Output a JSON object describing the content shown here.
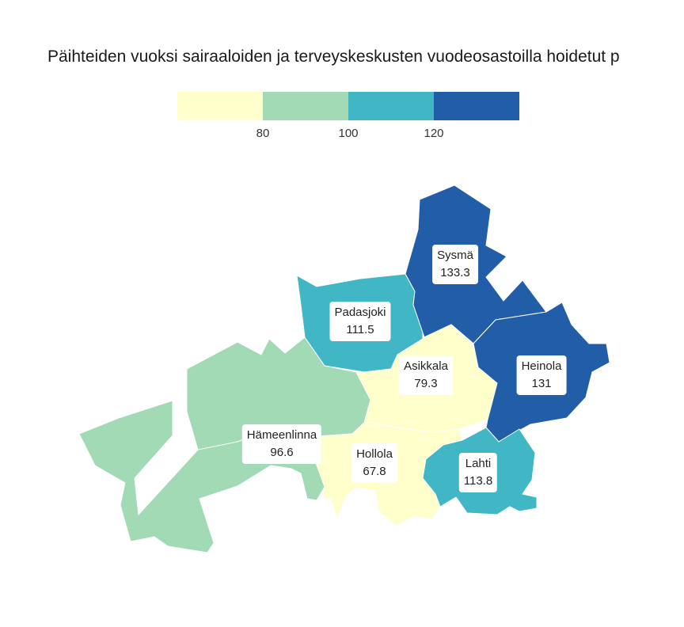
{
  "title": "Päihteiden vuoksi sairaaloiden ja terveyskeskusten vuodeosastoilla hoidetut p",
  "legend": {
    "colors": [
      "#ffffcc",
      "#a1dab4",
      "#41b6c4",
      "#225ea8"
    ],
    "ticks": [
      "80",
      "100",
      "120"
    ]
  },
  "regions": [
    {
      "name": "Sysmä",
      "value": "133.3",
      "color": "#225ea8"
    },
    {
      "name": "Padasjoki",
      "value": "111.5",
      "color": "#41b6c4"
    },
    {
      "name": "Asikkala",
      "value": "79.3",
      "color": "#ffffcc"
    },
    {
      "name": "Heinola",
      "value": "131",
      "color": "#225ea8"
    },
    {
      "name": "Hämeenlinna",
      "value": "96.6",
      "color": "#a1dab4"
    },
    {
      "name": "Hollola",
      "value": "67.8",
      "color": "#ffffcc"
    },
    {
      "name": "Lahti",
      "value": "113.8",
      "color": "#41b6c4"
    }
  ]
}
